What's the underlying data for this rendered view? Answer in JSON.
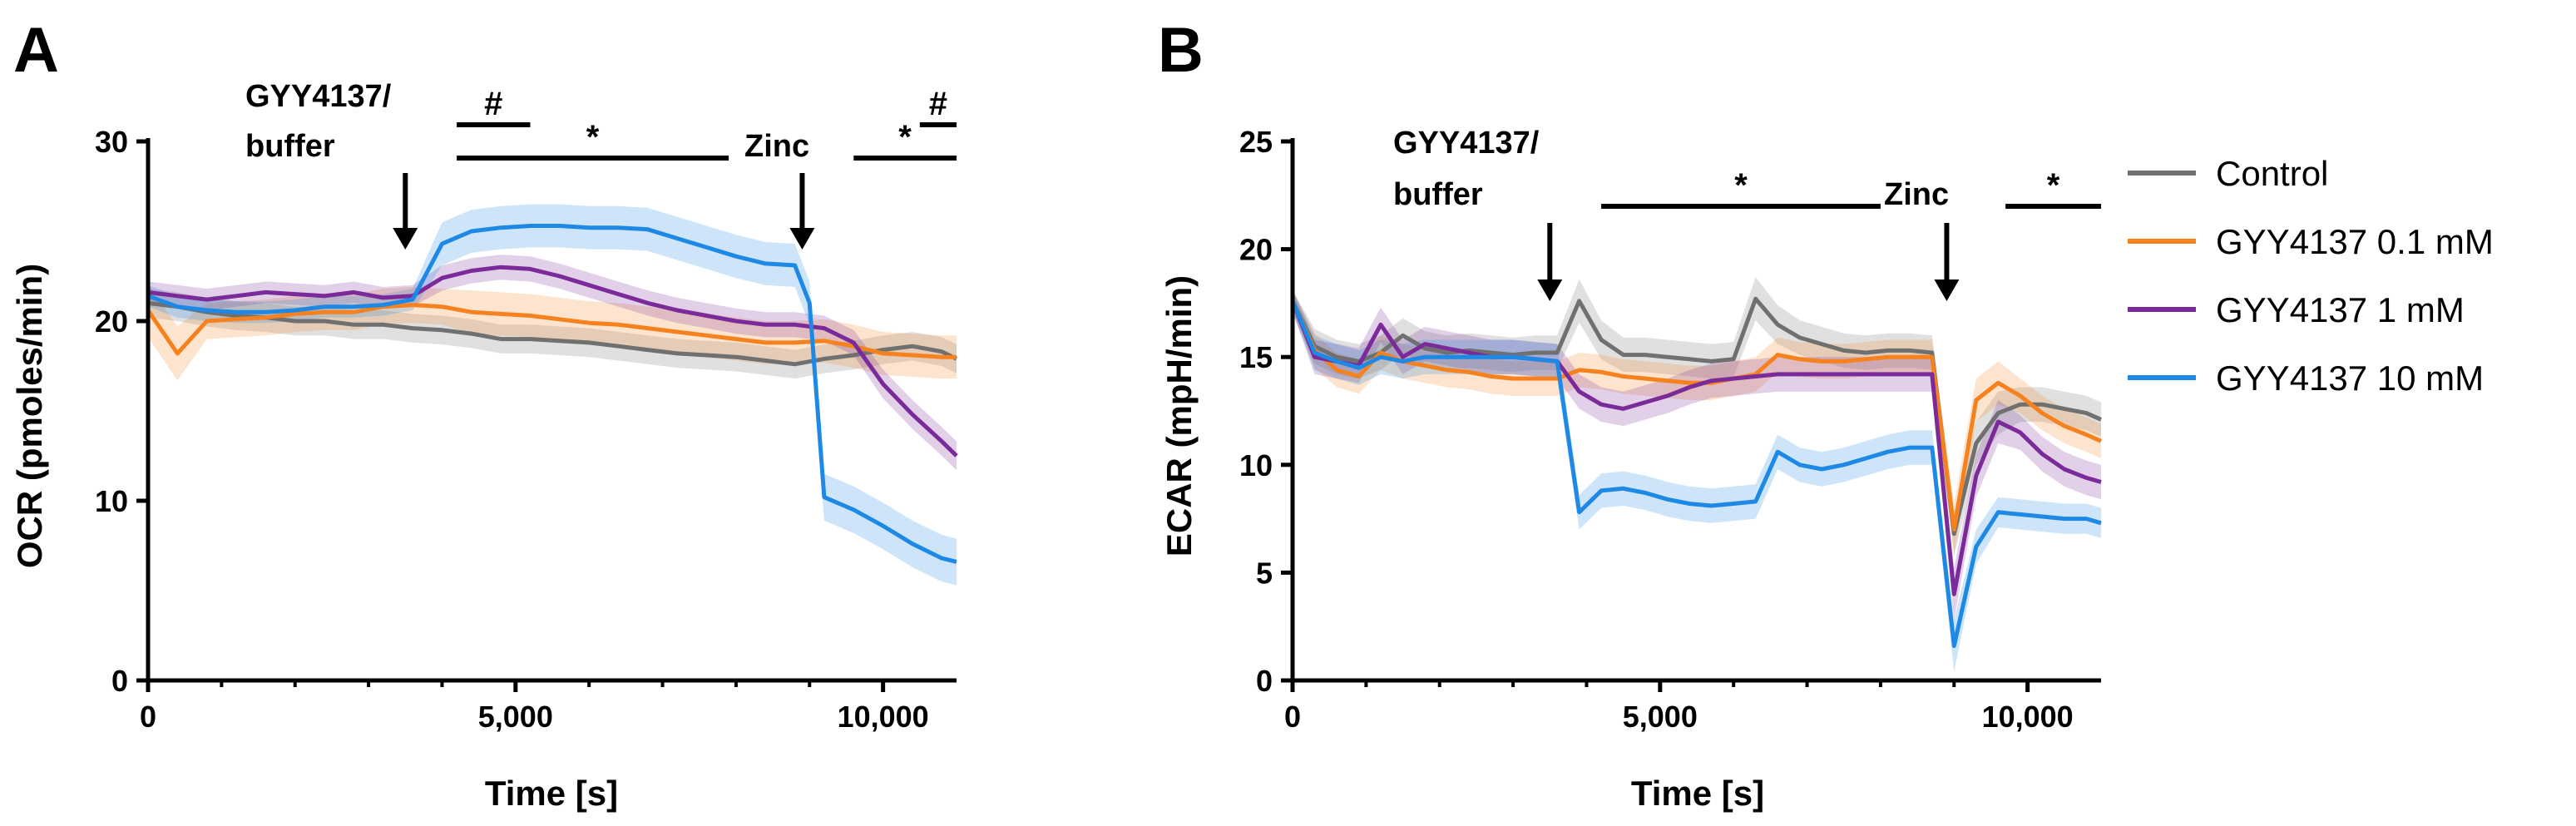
{
  "chart_data": [
    {
      "panel": "A",
      "type": "line",
      "xlabel": "Time [s]",
      "ylabel": "OCR (pmoles/min)",
      "xlim": [
        0,
        11000
      ],
      "ylim": [
        0,
        30
      ],
      "xticks": [
        0,
        5000,
        10000
      ],
      "xtick_labels": [
        "0",
        "5,000",
        "10,000"
      ],
      "yticks": [
        0,
        10,
        20,
        30
      ],
      "ytick_labels": [
        "0",
        "10",
        "20",
        "30"
      ],
      "grid": false,
      "annotations": [
        {
          "text": "GYY4137/",
          "text2": "buffer",
          "arrow_x": 3500
        },
        {
          "text": "Zinc",
          "arrow_x": 8900
        }
      ],
      "significance": [
        {
          "symbol": "#",
          "x_start": 4200,
          "x_end": 5200,
          "level": "upper"
        },
        {
          "symbol": "*",
          "x_start": 4200,
          "x_end": 7900,
          "level": "lower"
        },
        {
          "symbol": "*",
          "x_start": 9600,
          "x_end": 11000,
          "level": "lower"
        },
        {
          "symbol": "#",
          "x_start": 10500,
          "x_end": 11000,
          "level": "upper"
        }
      ],
      "series": [
        {
          "name": "Control",
          "color": "#707070",
          "x": [
            0,
            400,
            800,
            1200,
            1600,
            2000,
            2400,
            2800,
            3200,
            3600,
            4000,
            4400,
            4800,
            5200,
            5600,
            6000,
            6400,
            6800,
            7200,
            7600,
            8000,
            8400,
            8800,
            9200,
            9600,
            10000,
            10400,
            10800,
            11000
          ],
          "y": [
            21.0,
            20.8,
            20.5,
            20.3,
            20.2,
            20.0,
            20.0,
            19.8,
            19.8,
            19.6,
            19.5,
            19.3,
            19.0,
            19.0,
            18.9,
            18.8,
            18.6,
            18.4,
            18.2,
            18.1,
            18.0,
            17.8,
            17.6,
            17.9,
            18.1,
            18.4,
            18.6,
            18.3,
            17.9
          ],
          "err": [
            0.8,
            0.8,
            0.8,
            0.8,
            0.8,
            0.8,
            0.8,
            0.8,
            0.8,
            0.8,
            0.8,
            0.8,
            0.8,
            0.8,
            0.8,
            0.8,
            0.8,
            0.8,
            0.8,
            0.8,
            0.8,
            0.8,
            0.8,
            0.8,
            0.8,
            0.8,
            0.8,
            0.8,
            0.8
          ]
        },
        {
          "name": "GYY4137 0.1 mM",
          "color": "#F5821F",
          "x": [
            0,
            400,
            800,
            1200,
            1600,
            2000,
            2400,
            2800,
            3200,
            3600,
            4000,
            4400,
            4800,
            5200,
            5600,
            6000,
            6400,
            6800,
            7200,
            7600,
            8000,
            8400,
            8800,
            9200,
            9600,
            10000,
            10400,
            10800,
            11000
          ],
          "y": [
            20.6,
            18.2,
            20.0,
            20.1,
            20.2,
            20.4,
            20.5,
            20.5,
            20.8,
            20.9,
            20.8,
            20.5,
            20.4,
            20.3,
            20.1,
            19.9,
            19.8,
            19.6,
            19.4,
            19.2,
            19.0,
            18.8,
            18.8,
            18.9,
            18.6,
            18.2,
            18.1,
            18.0,
            18.0
          ],
          "err": [
            1.5,
            1.5,
            1.0,
            1.0,
            1.0,
            1.0,
            1.0,
            1.0,
            1.0,
            1.0,
            1.0,
            1.2,
            1.2,
            1.2,
            1.2,
            1.2,
            1.2,
            1.2,
            1.2,
            1.2,
            1.2,
            1.2,
            1.2,
            1.2,
            1.2,
            1.2,
            1.2,
            1.2,
            1.2
          ]
        },
        {
          "name": "GYY4137 1 mM",
          "color": "#7B2A99",
          "x": [
            0,
            400,
            800,
            1200,
            1600,
            2000,
            2400,
            2800,
            3200,
            3600,
            4000,
            4400,
            4800,
            5200,
            5600,
            6000,
            6400,
            6800,
            7200,
            7600,
            8000,
            8400,
            8800,
            9200,
            9600,
            10000,
            10400,
            10800,
            11000
          ],
          "y": [
            21.6,
            21.4,
            21.2,
            21.4,
            21.6,
            21.5,
            21.4,
            21.6,
            21.3,
            21.4,
            22.4,
            22.8,
            23.0,
            22.9,
            22.5,
            22.0,
            21.5,
            21.0,
            20.6,
            20.3,
            20.0,
            19.8,
            19.8,
            19.6,
            18.8,
            16.5,
            14.8,
            13.3,
            12.5
          ],
          "err": [
            0.6,
            0.6,
            0.6,
            0.6,
            0.6,
            0.6,
            0.6,
            0.6,
            0.6,
            0.6,
            0.7,
            0.7,
            0.7,
            0.7,
            0.7,
            0.7,
            0.7,
            0.7,
            0.7,
            0.7,
            0.7,
            0.7,
            0.7,
            0.7,
            0.7,
            0.8,
            0.8,
            0.8,
            0.8
          ]
        },
        {
          "name": "GYY4137 10 mM",
          "color": "#1E88E5",
          "x": [
            0,
            400,
            800,
            1200,
            1600,
            2000,
            2400,
            2800,
            3200,
            3600,
            4000,
            4400,
            4800,
            5200,
            5600,
            6000,
            6400,
            6800,
            7200,
            7600,
            8000,
            8400,
            8800,
            9000,
            9200,
            9600,
            10000,
            10400,
            10800,
            11000
          ],
          "y": [
            21.4,
            20.8,
            20.6,
            20.5,
            20.5,
            20.6,
            20.8,
            20.8,
            20.9,
            21.2,
            24.3,
            25.0,
            25.2,
            25.3,
            25.3,
            25.2,
            25.2,
            25.1,
            24.6,
            24.1,
            23.6,
            23.2,
            23.1,
            21.0,
            10.2,
            9.5,
            8.6,
            7.6,
            6.8,
            6.6
          ],
          "err": [
            0.6,
            0.6,
            0.6,
            0.6,
            0.6,
            0.6,
            0.6,
            0.6,
            0.6,
            0.6,
            1.2,
            1.2,
            1.2,
            1.2,
            1.2,
            1.2,
            1.2,
            1.2,
            1.2,
            1.2,
            1.2,
            1.2,
            1.2,
            1.2,
            1.3,
            1.3,
            1.3,
            1.3,
            1.3,
            1.3
          ]
        }
      ]
    },
    {
      "panel": "B",
      "type": "line",
      "xlabel": "Time [s]",
      "ylabel": "ECAR (mpH/min)",
      "xlim": [
        0,
        11000
      ],
      "ylim": [
        0,
        25
      ],
      "xticks": [
        0,
        5000,
        10000
      ],
      "xtick_labels": [
        "0",
        "5,000",
        "10,000"
      ],
      "yticks": [
        0,
        5,
        10,
        15,
        20,
        25
      ],
      "ytick_labels": [
        "0",
        "5",
        "10",
        "15",
        "20",
        "25"
      ],
      "grid": false,
      "legend_position": "right",
      "annotations": [
        {
          "text": "GYY4137/",
          "text2": "buffer",
          "arrow_x": 3500
        },
        {
          "text": "Zinc",
          "arrow_x": 8900
        }
      ],
      "significance": [
        {
          "symbol": "*",
          "x_start": 4200,
          "x_end": 8000,
          "level": "lower"
        },
        {
          "symbol": "*",
          "x_start": 9700,
          "x_end": 11000,
          "level": "lower"
        }
      ],
      "series": [
        {
          "name": "Control",
          "color": "#707070",
          "x": [
            0,
            300,
            600,
            900,
            1200,
            1500,
            1800,
            2100,
            2400,
            2700,
            3000,
            3300,
            3600,
            3900,
            4200,
            4500,
            4800,
            5100,
            5400,
            5700,
            6000,
            6300,
            6600,
            6900,
            7200,
            7500,
            7800,
            8100,
            8400,
            8700,
            9000,
            9300,
            9600,
            9900,
            10200,
            10500,
            10800,
            11000
          ],
          "y": [
            17.6,
            15.5,
            15.0,
            14.8,
            15.2,
            16.0,
            15.4,
            15.2,
            15.3,
            15.2,
            15.1,
            15.2,
            15.2,
            17.6,
            15.8,
            15.1,
            15.1,
            15.0,
            14.9,
            14.8,
            14.9,
            17.7,
            16.5,
            15.9,
            15.6,
            15.3,
            15.2,
            15.3,
            15.3,
            15.2,
            6.8,
            11.0,
            12.4,
            12.8,
            12.8,
            12.6,
            12.4,
            12.1
          ],
          "err": [
            0.5,
            0.8,
            0.8,
            0.8,
            0.8,
            0.8,
            0.8,
            0.8,
            0.8,
            0.8,
            0.8,
            0.8,
            0.8,
            1.0,
            0.9,
            0.8,
            0.8,
            0.8,
            0.8,
            0.8,
            0.8,
            1.0,
            0.9,
            0.8,
            0.8,
            0.8,
            0.8,
            0.8,
            0.8,
            0.8,
            1.0,
            1.0,
            1.0,
            0.8,
            0.8,
            0.8,
            0.8,
            0.8
          ]
        },
        {
          "name": "GYY4137 0.1 mM",
          "color": "#F5821F",
          "x": [
            0,
            300,
            600,
            900,
            1200,
            1500,
            1800,
            2100,
            2400,
            2700,
            3000,
            3300,
            3600,
            3900,
            4200,
            4500,
            4800,
            5100,
            5400,
            5700,
            6000,
            6300,
            6600,
            6900,
            7200,
            7500,
            7800,
            8100,
            8400,
            8700,
            9000,
            9300,
            9600,
            9900,
            10200,
            10500,
            10800,
            11000
          ],
          "y": [
            17.6,
            15.3,
            14.4,
            14.1,
            15.2,
            14.8,
            14.6,
            14.4,
            14.3,
            14.1,
            14.0,
            14.0,
            14.0,
            14.4,
            14.3,
            14.1,
            14.0,
            13.9,
            13.8,
            13.8,
            14.0,
            14.2,
            15.1,
            14.9,
            14.8,
            14.8,
            14.9,
            15.0,
            15.0,
            15.0,
            7.0,
            13.0,
            13.8,
            13.2,
            12.4,
            11.8,
            11.4,
            11.1
          ],
          "err": [
            0.5,
            0.8,
            0.8,
            0.8,
            0.8,
            0.8,
            0.8,
            0.8,
            0.8,
            0.8,
            0.8,
            0.8,
            0.8,
            0.8,
            0.8,
            0.8,
            0.8,
            0.8,
            0.8,
            0.8,
            0.8,
            0.8,
            0.8,
            0.8,
            0.8,
            0.8,
            0.8,
            0.8,
            0.8,
            0.8,
            1.2,
            1.0,
            1.0,
            0.8,
            0.8,
            0.8,
            0.8,
            0.8
          ]
        },
        {
          "name": "GYY4137 1 mM",
          "color": "#7B2A99",
          "x": [
            0,
            300,
            600,
            900,
            1200,
            1500,
            1800,
            2100,
            2400,
            2700,
            3000,
            3300,
            3600,
            3900,
            4200,
            4500,
            4800,
            5100,
            5400,
            5700,
            6000,
            6300,
            6600,
            6900,
            7200,
            7500,
            7800,
            8100,
            8400,
            8700,
            9000,
            9300,
            9600,
            9900,
            10200,
            10500,
            10800,
            11000
          ],
          "y": [
            17.6,
            15.0,
            14.8,
            14.6,
            16.5,
            15.0,
            15.6,
            15.4,
            15.2,
            15.0,
            15.0,
            14.9,
            14.8,
            13.4,
            12.8,
            12.6,
            12.9,
            13.2,
            13.6,
            13.9,
            14.0,
            14.1,
            14.2,
            14.2,
            14.2,
            14.2,
            14.2,
            14.2,
            14.2,
            14.2,
            4.0,
            9.5,
            12.0,
            11.5,
            10.5,
            9.8,
            9.4,
            9.2
          ],
          "err": [
            0.5,
            0.8,
            0.8,
            0.8,
            0.8,
            0.8,
            0.8,
            0.8,
            0.8,
            0.8,
            0.8,
            0.8,
            0.8,
            0.8,
            0.8,
            0.8,
            0.8,
            0.8,
            0.8,
            0.8,
            0.8,
            0.8,
            0.8,
            0.8,
            0.8,
            0.8,
            0.8,
            0.8,
            0.8,
            0.8,
            1.2,
            1.0,
            1.0,
            0.8,
            0.8,
            0.8,
            0.8,
            0.8
          ]
        },
        {
          "name": "GYY4137 10 mM",
          "color": "#1E88E5",
          "x": [
            0,
            300,
            600,
            900,
            1200,
            1500,
            1800,
            2100,
            2400,
            2700,
            3000,
            3300,
            3600,
            3900,
            4200,
            4500,
            4800,
            5100,
            5400,
            5700,
            6000,
            6300,
            6600,
            6900,
            7200,
            7500,
            7800,
            8100,
            8400,
            8700,
            9000,
            9300,
            9600,
            9900,
            10200,
            10500,
            10800,
            11000
          ],
          "y": [
            17.6,
            15.2,
            14.8,
            14.5,
            15.0,
            14.8,
            15.0,
            15.0,
            15.0,
            15.0,
            15.0,
            14.9,
            14.8,
            7.8,
            8.8,
            8.9,
            8.7,
            8.4,
            8.2,
            8.1,
            8.2,
            8.3,
            10.6,
            10.0,
            9.8,
            10.0,
            10.3,
            10.6,
            10.8,
            10.8,
            1.6,
            6.2,
            7.8,
            7.7,
            7.6,
            7.5,
            7.5,
            7.3
          ],
          "err": [
            0.5,
            0.8,
            0.8,
            0.8,
            0.8,
            0.8,
            0.8,
            0.8,
            0.8,
            0.8,
            0.8,
            0.8,
            0.8,
            0.8,
            0.8,
            0.8,
            0.8,
            0.8,
            0.8,
            0.8,
            0.8,
            0.8,
            0.8,
            0.8,
            0.8,
            0.8,
            0.8,
            0.8,
            0.8,
            0.8,
            1.2,
            0.8,
            0.7,
            0.7,
            0.7,
            0.7,
            0.7,
            0.7
          ]
        }
      ]
    }
  ],
  "legend": {
    "items": [
      "Control",
      "GYY4137 0.1 mM",
      "GYY4137 1 mM",
      "GYY4137 10 mM"
    ],
    "colors": [
      "#707070",
      "#F5821F",
      "#7B2A99",
      "#1E88E5"
    ]
  }
}
